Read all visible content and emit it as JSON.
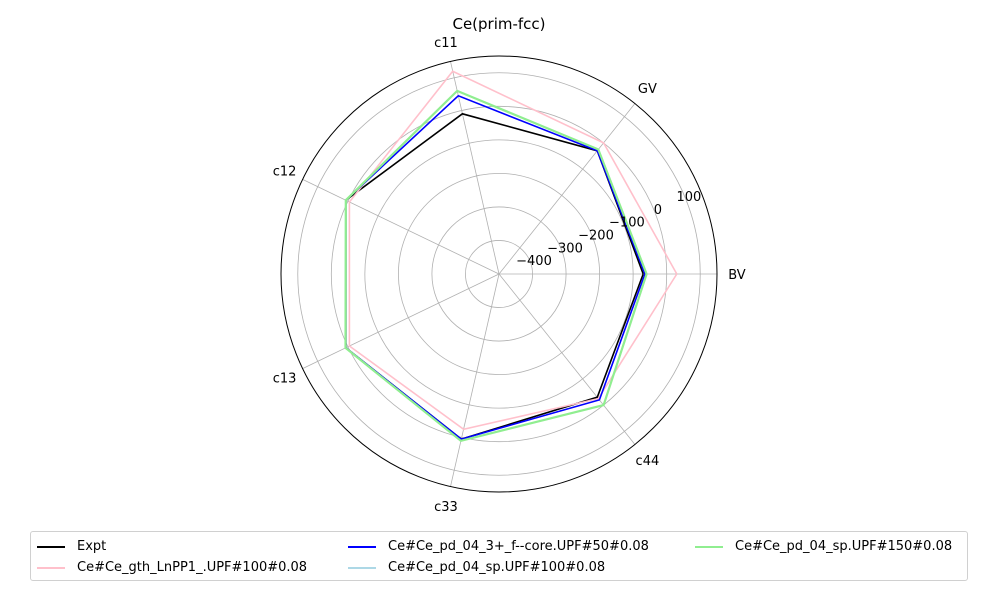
{
  "chart_data": {
    "type": "radar",
    "title": "Ce(prim-fcc)",
    "axes": [
      "BV",
      "GV",
      "c11",
      "c12",
      "c13",
      "c33",
      "c44"
    ],
    "radial_ticks": [
      -400,
      -300,
      -200,
      -100,
      0,
      100
    ],
    "radial_range": [
      -500,
      150
    ],
    "grid": true,
    "legend_position": "bottom",
    "series": [
      {
        "name": "Expt",
        "color": "#000000",
        "values": [
          -70,
          -30,
          -10,
          7,
          7,
          5,
          -30
        ]
      },
      {
        "name": "Ce#Ce_gth_LnPP1_.UPF#100#0.08",
        "color": "#ffc0cb",
        "values": [
          30,
          0,
          120,
          -5,
          -5,
          -25,
          -25
        ]
      },
      {
        "name": "Ce#Ce_pd_04_3+_f--core.UPF#50#0.08",
        "color": "#0000ff",
        "values": [
          -65,
          -30,
          45,
          7,
          7,
          5,
          -20
        ]
      },
      {
        "name": "Ce#Ce_pd_04_sp.UPF#100#0.08",
        "color": "#add8e6",
        "values": [
          -60,
          -25,
          60,
          7,
          8,
          10,
          0
        ]
      },
      {
        "name": "Ce#Ce_pd_04_sp.UPF#150#0.08",
        "color": "#90ee90",
        "values": [
          -60,
          -25,
          60,
          7,
          8,
          10,
          0
        ]
      }
    ]
  }
}
